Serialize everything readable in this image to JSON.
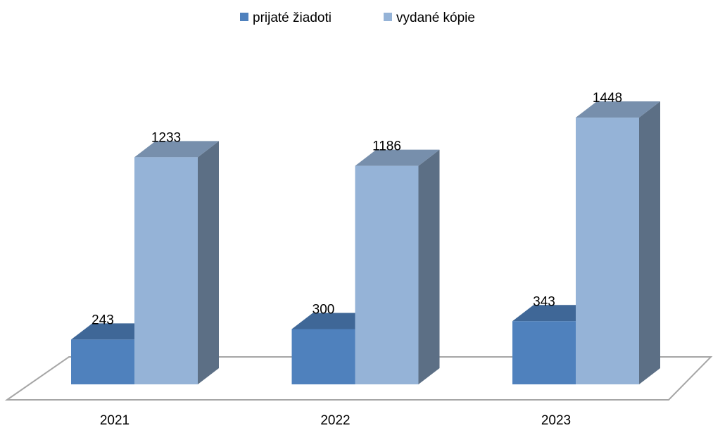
{
  "chart_data": {
    "type": "bar3d",
    "categories": [
      "2021",
      "2022",
      "2023"
    ],
    "series": [
      {
        "name": "prijaté žiadoti",
        "color": "#4f81bd",
        "values": [
          243,
          300,
          343
        ]
      },
      {
        "name": "vydané kópie",
        "color": "#95b3d7",
        "values": [
          1233,
          1186,
          1448
        ]
      }
    ],
    "legend": "top"
  }
}
